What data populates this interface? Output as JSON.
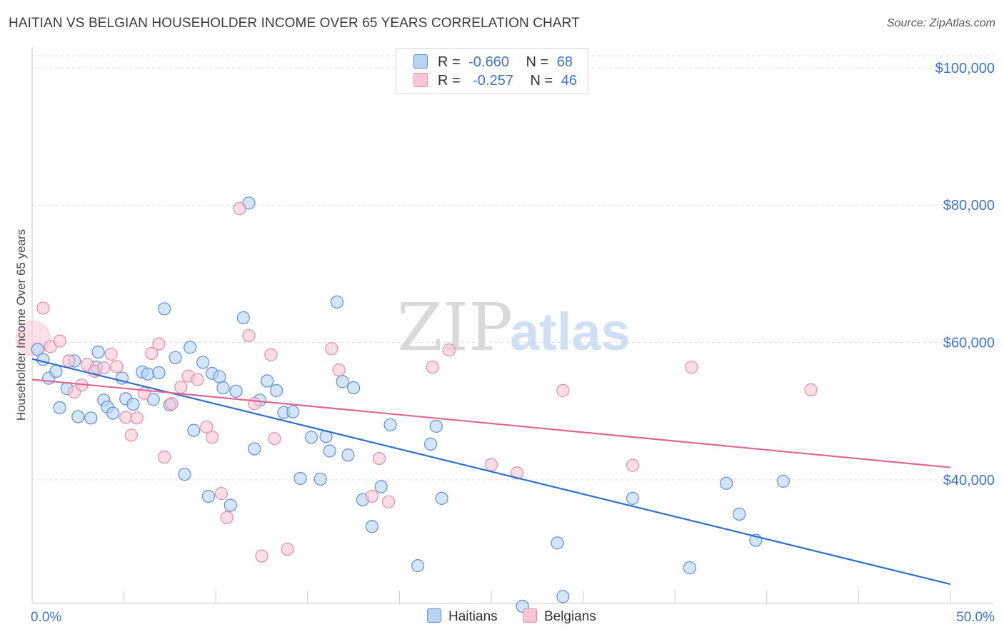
{
  "title": "HAITIAN VS BELGIAN HOUSEHOLDER INCOME OVER 65 YEARS CORRELATION CHART",
  "source": "Source: ZipAtlas.com",
  "watermark": {
    "zip": "ZIP",
    "atlas": "atlas"
  },
  "legend": {
    "haitians": {
      "r_label": "R =",
      "r_value": "-0.660",
      "n_label": "N =",
      "n_value": "68"
    },
    "belgians": {
      "r_label": "R =",
      "r_value": "-0.257",
      "n_label": "N =",
      "n_value": "46"
    }
  },
  "bottom_legend": {
    "haitians": "Haitians",
    "belgians": "Belgians"
  },
  "colors": {
    "haitians_fill": "#b9d3f3",
    "haitians_stroke": "#5b8fd4",
    "haitians_line": "#2d6fd0",
    "belgians_fill": "#f8c6d6",
    "belgians_stroke": "#e48aa8",
    "belgians_line": "#e0668f",
    "tick_label": "#3f74c8",
    "grid": "#dcdcdc"
  },
  "chart_data": {
    "type": "scatter",
    "xlabel": "",
    "ylabel": "Householder Income Over 65 years",
    "xlim": [
      0,
      50
    ],
    "ylim": [
      22000,
      103000
    ],
    "x_tick_labels": [
      "0.0%",
      "50.0%"
    ],
    "y_ticks": [
      40000,
      60000,
      80000,
      100000
    ],
    "y_tick_labels": [
      "$40,000",
      "$60,000",
      "$80,000",
      "$100,000"
    ],
    "grid": true,
    "series": [
      {
        "name": "Haitians",
        "trend": {
          "x": [
            0,
            50
          ],
          "y": [
            57600,
            24800
          ]
        },
        "points": [
          [
            0.3,
            59000
          ],
          [
            0.6,
            57500
          ],
          [
            0.9,
            54800
          ],
          [
            1.3,
            55800
          ],
          [
            1.5,
            50500
          ],
          [
            1.9,
            53300
          ],
          [
            2.5,
            49200
          ],
          [
            2.3,
            57300
          ],
          [
            3.2,
            49000
          ],
          [
            3.5,
            56400
          ],
          [
            3.6,
            58600
          ],
          [
            3.9,
            51600
          ],
          [
            4.1,
            50600
          ],
          [
            4.4,
            49700
          ],
          [
            4.9,
            54800
          ],
          [
            5.1,
            51800
          ],
          [
            5.5,
            51000
          ],
          [
            6.0,
            55700
          ],
          [
            6.3,
            55400
          ],
          [
            6.6,
            51700
          ],
          [
            6.9,
            55600
          ],
          [
            7.2,
            64900
          ],
          [
            7.5,
            50900
          ],
          [
            7.8,
            57800
          ],
          [
            8.3,
            40800
          ],
          [
            8.6,
            59300
          ],
          [
            8.8,
            47200
          ],
          [
            9.3,
            57100
          ],
          [
            9.6,
            37600
          ],
          [
            9.8,
            55500
          ],
          [
            10.2,
            55000
          ],
          [
            10.4,
            53400
          ],
          [
            10.8,
            36300
          ],
          [
            11.1,
            52900
          ],
          [
            11.5,
            63600
          ],
          [
            11.8,
            80300
          ],
          [
            12.1,
            44500
          ],
          [
            12.4,
            51600
          ],
          [
            12.8,
            54400
          ],
          [
            13.3,
            53000
          ],
          [
            13.7,
            49800
          ],
          [
            14.2,
            49900
          ],
          [
            14.6,
            40200
          ],
          [
            15.2,
            46200
          ],
          [
            15.7,
            40100
          ],
          [
            16.0,
            46300
          ],
          [
            16.2,
            44200
          ],
          [
            16.6,
            65900
          ],
          [
            16.9,
            54300
          ],
          [
            17.2,
            43600
          ],
          [
            17.5,
            53400
          ],
          [
            18.0,
            37100
          ],
          [
            18.5,
            33200
          ],
          [
            19.0,
            39000
          ],
          [
            19.5,
            48000
          ],
          [
            21.0,
            27500
          ],
          [
            21.7,
            45200
          ],
          [
            22.0,
            47800
          ],
          [
            22.3,
            37300
          ],
          [
            26.7,
            21600
          ],
          [
            28.6,
            30800
          ],
          [
            28.9,
            23000
          ],
          [
            32.7,
            37300
          ],
          [
            35.8,
            27200
          ],
          [
            37.8,
            39500
          ],
          [
            38.5,
            35000
          ],
          [
            39.4,
            31200
          ],
          [
            40.9,
            39800
          ]
        ]
      },
      {
        "name": "Belgians",
        "trend": {
          "x": [
            0,
            50
          ],
          "y": [
            54600,
            41800
          ]
        },
        "points": [
          [
            0.6,
            65000
          ],
          [
            1.0,
            59400
          ],
          [
            1.5,
            60200
          ],
          [
            2.0,
            57300
          ],
          [
            2.3,
            52800
          ],
          [
            2.7,
            53800
          ],
          [
            3.0,
            56800
          ],
          [
            3.4,
            55800
          ],
          [
            3.9,
            56300
          ],
          [
            4.3,
            58300
          ],
          [
            4.6,
            56500
          ],
          [
            5.1,
            49100
          ],
          [
            5.4,
            46500
          ],
          [
            5.7,
            49000
          ],
          [
            6.1,
            52600
          ],
          [
            6.5,
            58400
          ],
          [
            6.9,
            59800
          ],
          [
            7.2,
            43300
          ],
          [
            7.6,
            51100
          ],
          [
            8.1,
            53500
          ],
          [
            8.5,
            55100
          ],
          [
            9.0,
            54600
          ],
          [
            9.5,
            47700
          ],
          [
            9.8,
            46200
          ],
          [
            10.3,
            38000
          ],
          [
            10.6,
            34500
          ],
          [
            11.3,
            79500
          ],
          [
            11.8,
            61000
          ],
          [
            12.1,
            51100
          ],
          [
            12.5,
            28900
          ],
          [
            13.0,
            58200
          ],
          [
            13.2,
            46000
          ],
          [
            13.9,
            29900
          ],
          [
            16.3,
            59100
          ],
          [
            16.7,
            56000
          ],
          [
            18.5,
            37600
          ],
          [
            18.9,
            43100
          ],
          [
            19.4,
            36800
          ],
          [
            21.8,
            56400
          ],
          [
            22.7,
            58900
          ],
          [
            25.0,
            42200
          ],
          [
            26.4,
            41000
          ],
          [
            28.9,
            53000
          ],
          [
            32.7,
            42100
          ],
          [
            35.9,
            56400
          ],
          [
            42.4,
            53100
          ]
        ]
      }
    ]
  }
}
